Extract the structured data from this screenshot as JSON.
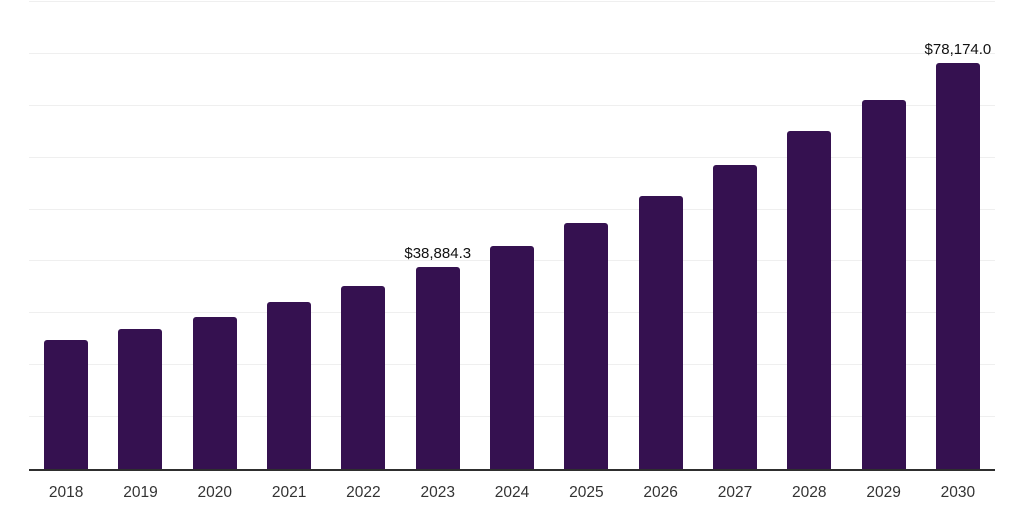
{
  "chart_data": {
    "type": "bar",
    "title": "",
    "xlabel": "",
    "ylabel": "",
    "categories": [
      "2018",
      "2019",
      "2020",
      "2021",
      "2022",
      "2023",
      "2024",
      "2025",
      "2026",
      "2027",
      "2028",
      "2029",
      "2030"
    ],
    "values": [
      24800,
      27000,
      29300,
      32200,
      35200,
      38884.3,
      43000,
      47400,
      52700,
      58600,
      65200,
      71200,
      78174.0
    ],
    "data_labels": [
      "",
      "",
      "",
      "",
      "",
      "$38,884.3",
      "",
      "",
      "",
      "",
      "",
      "",
      "$78,174.0"
    ],
    "ylim": [
      0,
      90000
    ],
    "gridline_interval": 10000,
    "grid": "horizontal-only",
    "legend_position": "none",
    "y_axis_tick_labels": "none",
    "colors": {
      "bar": "#351150",
      "gridline": "#efefef",
      "axis_line": "#2e2e2e",
      "x_tick_label": "#333333",
      "value_label": "#111111",
      "background": "#ffffff"
    }
  }
}
